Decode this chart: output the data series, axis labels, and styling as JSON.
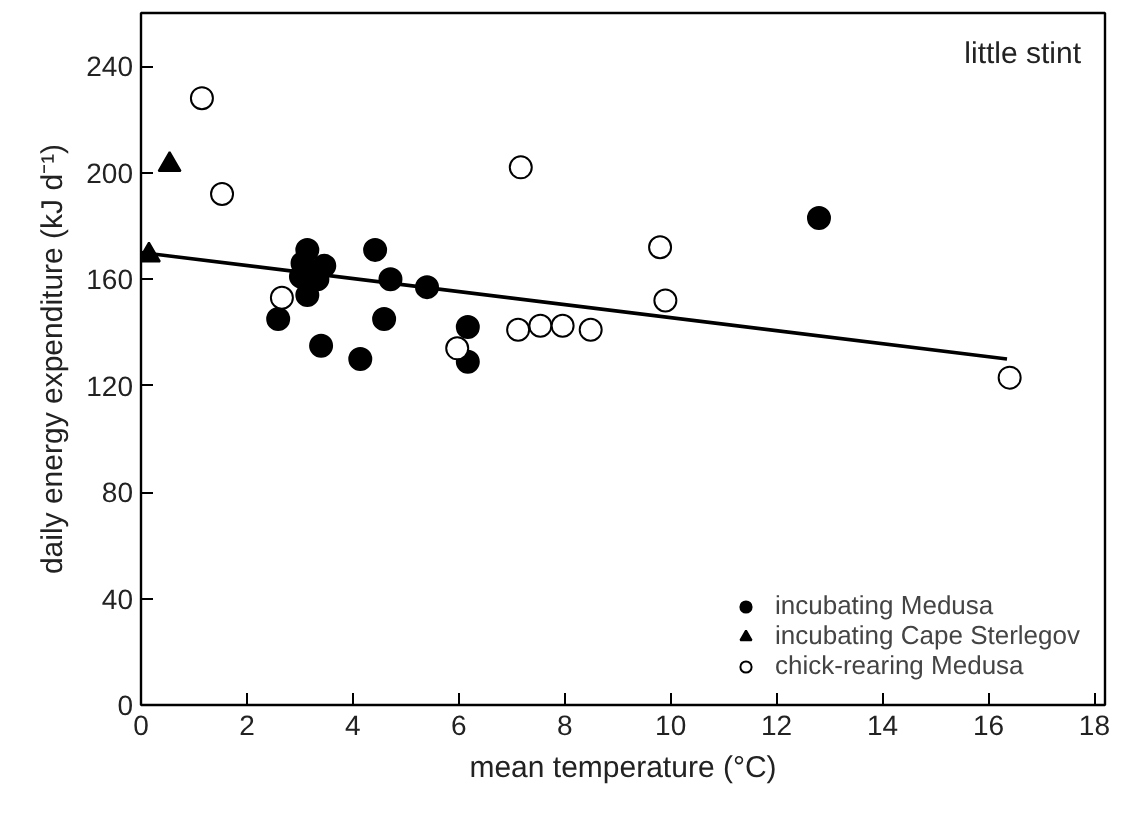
{
  "chart_data": {
    "type": "scatter",
    "xlabel": "mean temperature (°C)",
    "ylabel": "daily energy expenditure (kJ d⁻¹)",
    "xlim": [
      0,
      18.2
    ],
    "xticks": [
      0,
      2,
      4,
      6,
      8,
      10,
      12,
      14,
      16,
      18
    ],
    "ylim": [
      0,
      260
    ],
    "yticks": [
      0,
      40,
      80,
      120,
      160,
      200,
      240
    ],
    "grid": false,
    "legend": "bottom right",
    "annotations": [
      "little stint"
    ],
    "series": [
      {
        "name": "incubating Medusa",
        "color": "#000000",
        "marker": "circle",
        "x": [
          2.59,
          3.14,
          3.05,
          3.46,
          3.02,
          3.33,
          3.14,
          3.4,
          4.14,
          4.42,
          4.59,
          4.71,
          5.4,
          6.17,
          6.17,
          12.8
        ],
        "values": [
          145,
          171,
          166,
          165,
          161,
          160,
          154,
          135,
          130,
          171,
          145,
          160,
          157,
          142,
          129,
          183
        ]
      },
      {
        "name": "incubating Cape Sterlegov",
        "color": "#000000",
        "marker": "triangle",
        "x": [
          0.15,
          0.54
        ],
        "values": [
          169,
          203
        ]
      },
      {
        "name": "chick-rearing Medusa",
        "color": "#ffffff",
        "marker": "circle",
        "x": [
          1.15,
          1.53,
          2.66,
          5.97,
          7.17,
          7.12,
          7.54,
          7.96,
          8.49,
          9.8,
          9.9,
          16.4
        ],
        "values": [
          228,
          192,
          153,
          134,
          202,
          141,
          142.5,
          142.5,
          141,
          172,
          152,
          123
        ]
      },
      {
        "type": "line",
        "color": "#000000",
        "x": [
          0,
          16.35
        ],
        "values": [
          170,
          130
        ]
      }
    ]
  }
}
